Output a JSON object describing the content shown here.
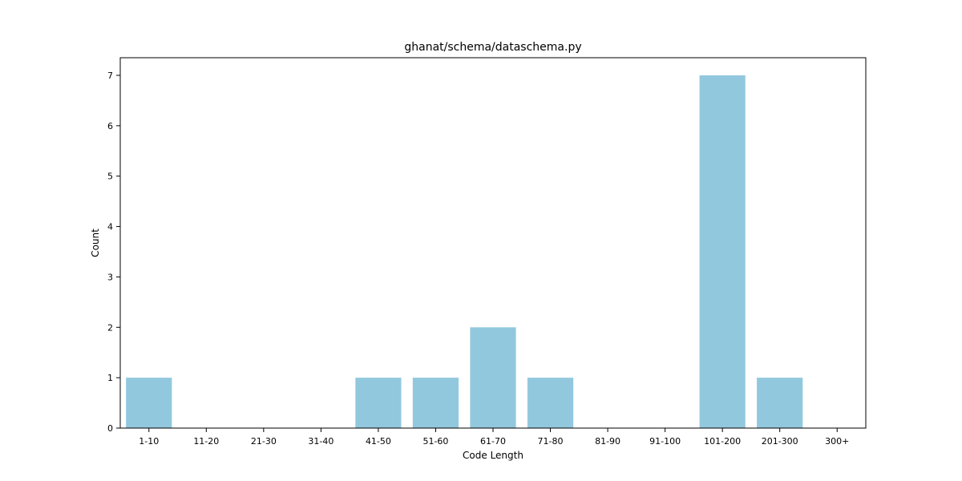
{
  "chart_data": {
    "type": "bar",
    "title": "ghanat/schema/dataschema.py",
    "xlabel": "Code Length",
    "ylabel": "Count",
    "categories": [
      "1-10",
      "11-20",
      "21-30",
      "31-40",
      "41-50",
      "51-60",
      "61-70",
      "71-80",
      "81-90",
      "91-100",
      "101-200",
      "201-300",
      "300+"
    ],
    "values": [
      1,
      0,
      0,
      0,
      1,
      1,
      2,
      1,
      0,
      0,
      7,
      1,
      0
    ],
    "ylim": [
      0,
      7.35
    ],
    "yticks": [
      0,
      1,
      2,
      3,
      4,
      5,
      6,
      7
    ],
    "grid": false,
    "bar_color": "#92c8de"
  }
}
